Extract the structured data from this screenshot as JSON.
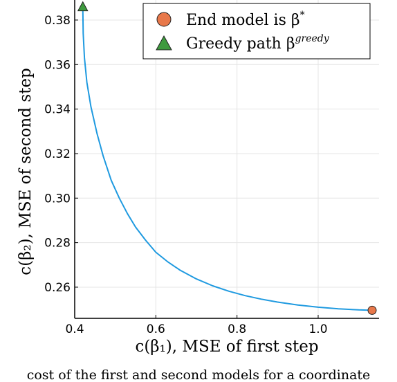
{
  "chart_data": {
    "type": "line",
    "xlabel": "c(β₁), MSE of first step",
    "ylabel": "c(β₂), MSE of second step",
    "xlim": [
      0.4,
      1.15
    ],
    "ylim": [
      0.246,
      0.389
    ],
    "x_ticks": [
      "0.4",
      "0.6",
      "0.8",
      "1.0"
    ],
    "x_tick_values": [
      0.4,
      0.6,
      0.8,
      1.0
    ],
    "y_ticks": [
      "0.26",
      "0.28",
      "0.30",
      "0.32",
      "0.34",
      "0.36",
      "0.38"
    ],
    "y_tick_values": [
      0.26,
      0.28,
      0.3,
      0.32,
      0.34,
      0.36,
      0.38
    ],
    "grid": true,
    "legend_position": "top-right",
    "series": [
      {
        "color": "#1f9ae0",
        "x": [
          0.42,
          0.421,
          0.424,
          0.43,
          0.44,
          0.455,
          0.47,
          0.49,
          0.51,
          0.53,
          0.55,
          0.575,
          0.6,
          0.63,
          0.66,
          0.7,
          0.74,
          0.78,
          0.82,
          0.86,
          0.9,
          0.95,
          1.0,
          1.05,
          1.1,
          1.133
        ],
        "y": [
          0.386,
          0.374,
          0.363,
          0.352,
          0.341,
          0.329,
          0.319,
          0.308,
          0.3,
          0.293,
          0.287,
          0.281,
          0.2757,
          0.2713,
          0.2676,
          0.2637,
          0.2606,
          0.2582,
          0.2562,
          0.2546,
          0.2533,
          0.252,
          0.251,
          0.2503,
          0.2498,
          0.2496
        ]
      }
    ],
    "markers": [
      {
        "label_text": "End model is β",
        "superscript": "*",
        "shape": "circle",
        "color": "#e8784a",
        "x": 1.133,
        "y": 0.2496
      },
      {
        "label_text": "Greedy path β",
        "superscript": "greedy",
        "shape": "triangle",
        "color": "#3e9a3e",
        "x": 0.42,
        "y": 0.386
      }
    ]
  },
  "caption": "cost of the first and second models for a coordinate"
}
